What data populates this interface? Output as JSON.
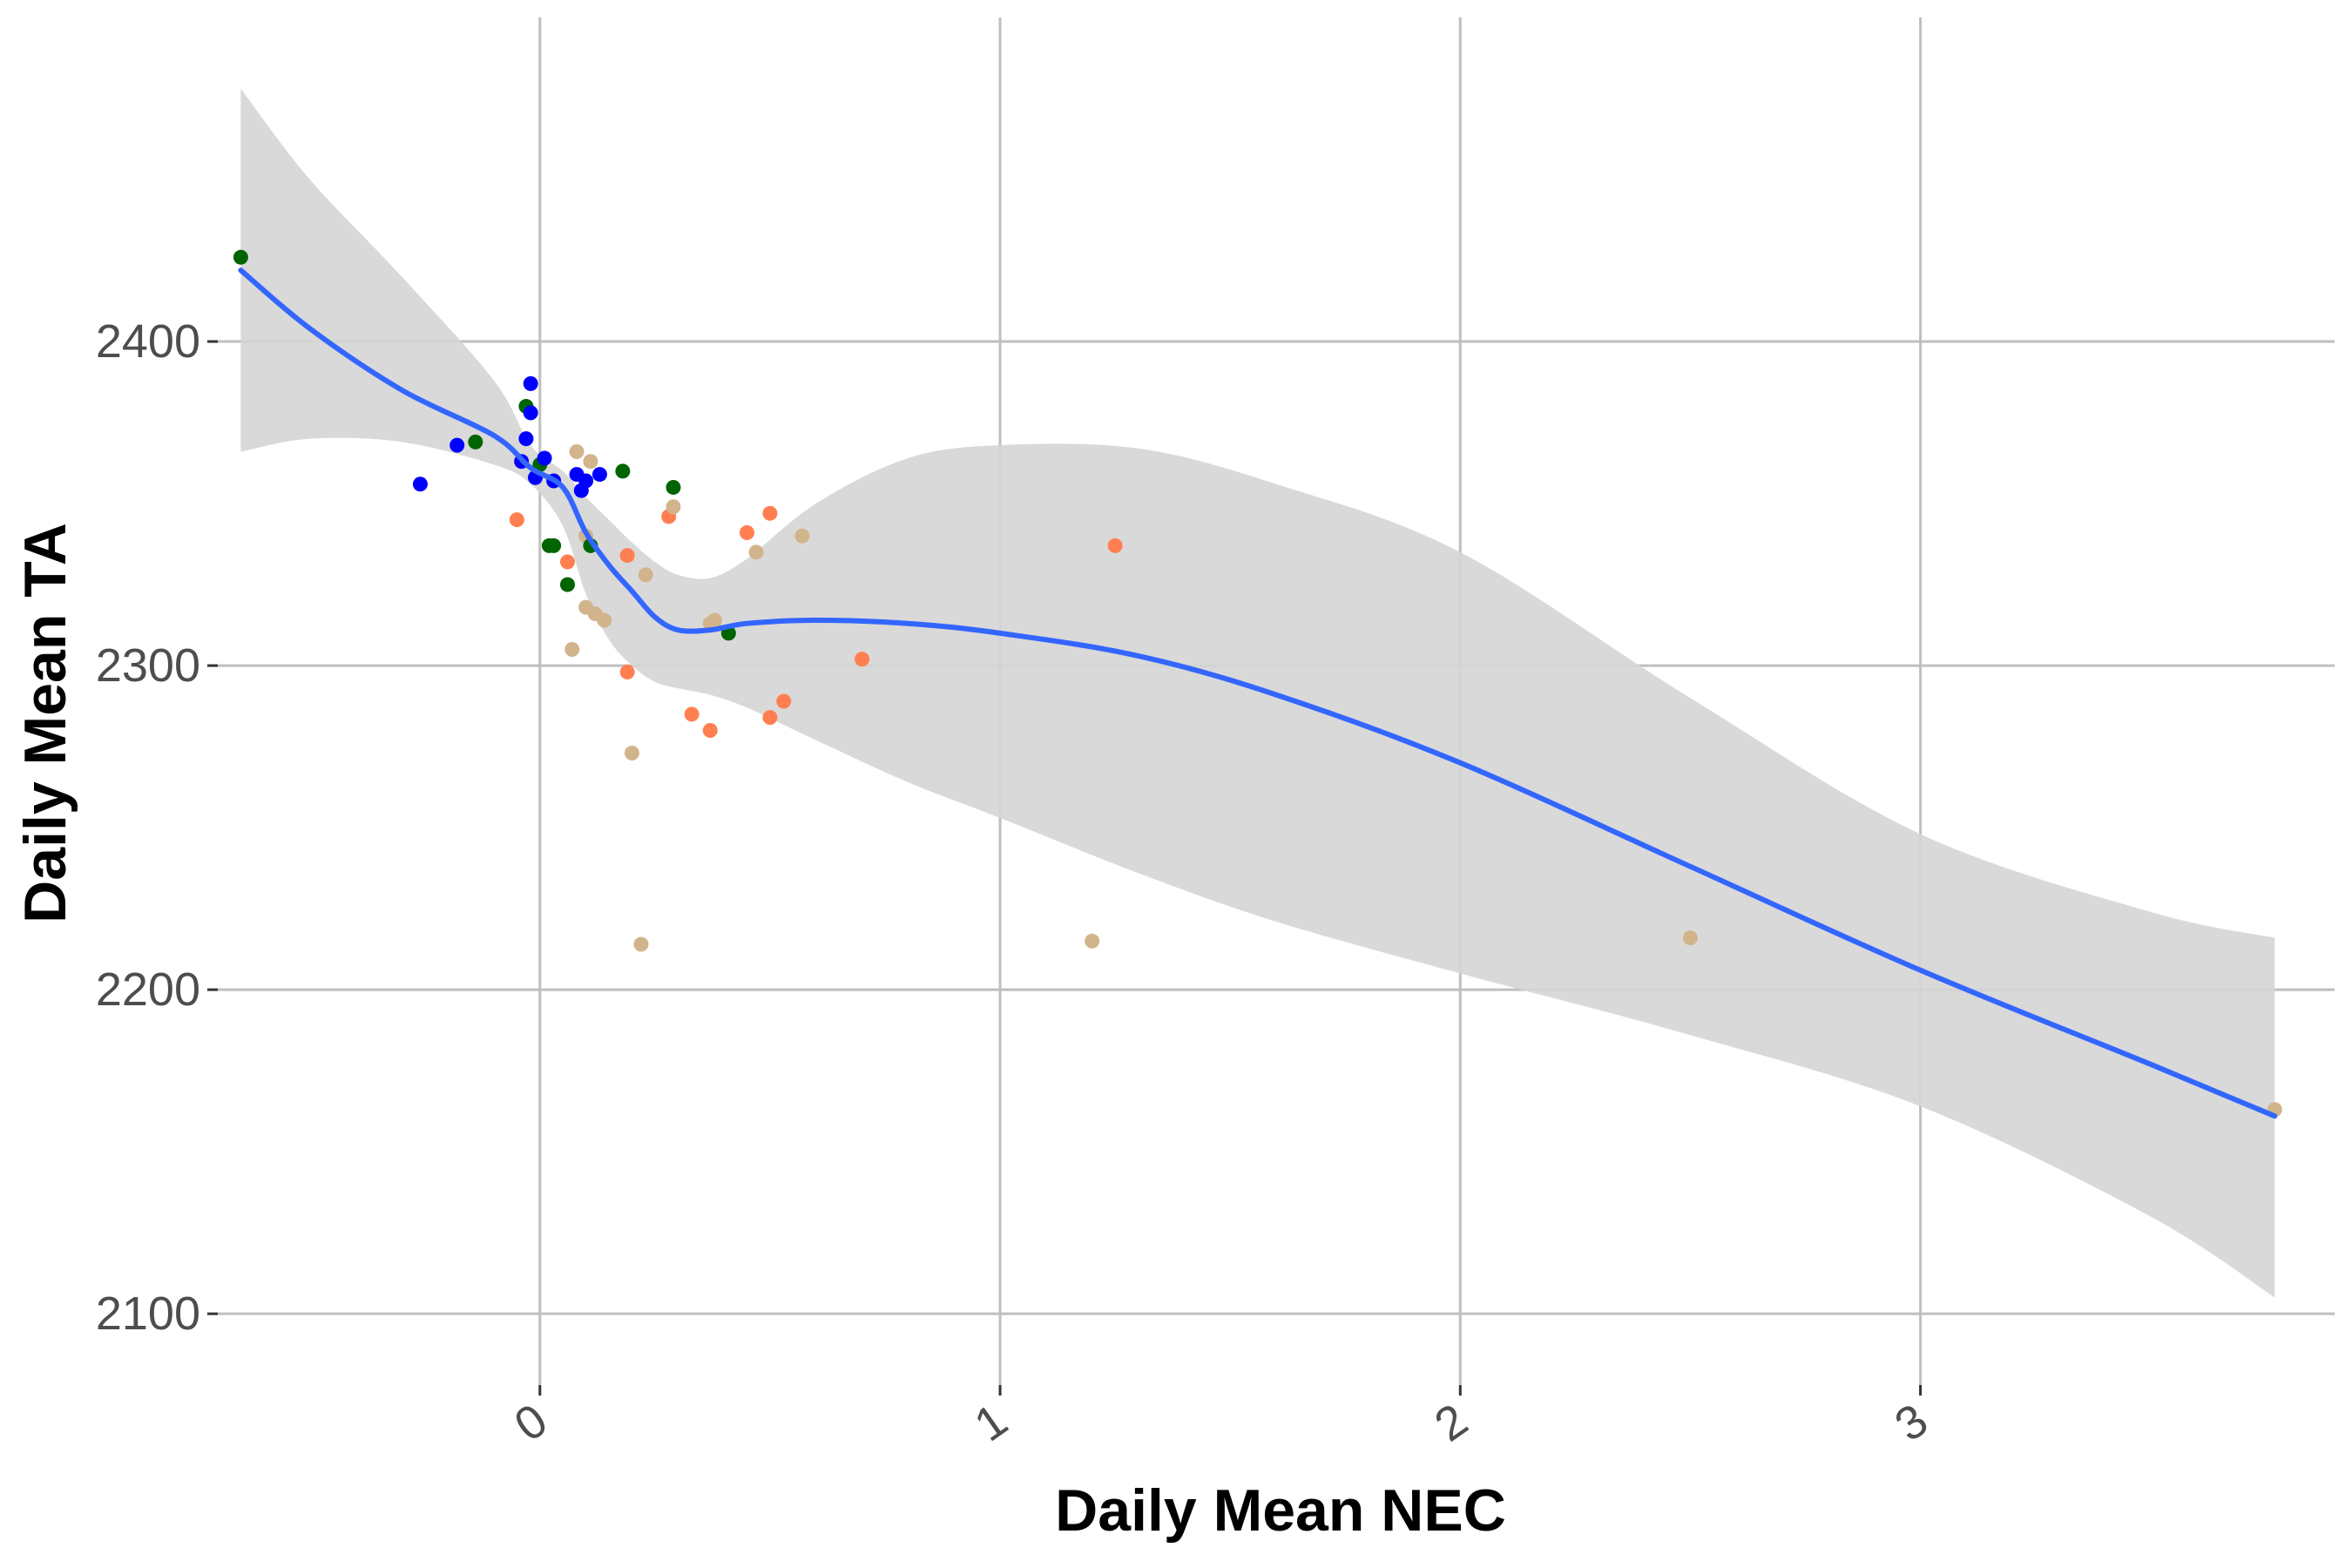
{
  "colors": {
    "grid": "#bfbfbf",
    "band": "#d5d5d5",
    "smooth_line": "#3366ff",
    "blue": "#0000ff",
    "green": "#006400",
    "coral": "#ff7f50",
    "tan": "#d2b48c"
  },
  "chart_data": {
    "type": "scatter",
    "title": "",
    "xlabel": "Daily Mean NEC",
    "ylabel": "Daily Mean TA",
    "xlim": [
      -0.7,
      3.9
    ],
    "ylim": [
      2078,
      2500
    ],
    "x_ticks": [
      0,
      1,
      2,
      3
    ],
    "y_ticks": [
      2100,
      2200,
      2300,
      2400
    ],
    "x_tick_labels": [
      "0",
      "1",
      "2",
      "3"
    ],
    "y_tick_labels": [
      "2100",
      "2200",
      "2300",
      "2400"
    ],
    "grid": true,
    "legend": "none",
    "points": [
      {
        "x": -0.65,
        "y": 2426,
        "color": "green"
      },
      {
        "x": -0.26,
        "y": 2356,
        "color": "blue"
      },
      {
        "x": -0.18,
        "y": 2368,
        "color": "blue"
      },
      {
        "x": -0.14,
        "y": 2369,
        "color": "green"
      },
      {
        "x": -0.05,
        "y": 2345,
        "color": "coral"
      },
      {
        "x": -0.03,
        "y": 2380,
        "color": "green"
      },
      {
        "x": -0.02,
        "y": 2387,
        "color": "blue"
      },
      {
        "x": -0.02,
        "y": 2378,
        "color": "blue"
      },
      {
        "x": -0.03,
        "y": 2370,
        "color": "blue"
      },
      {
        "x": -0.04,
        "y": 2363,
        "color": "blue"
      },
      {
        "x": -0.01,
        "y": 2358,
        "color": "blue"
      },
      {
        "x": 0.0,
        "y": 2362,
        "color": "green"
      },
      {
        "x": 0.01,
        "y": 2364,
        "color": "blue"
      },
      {
        "x": 0.03,
        "y": 2357,
        "color": "blue"
      },
      {
        "x": 0.02,
        "y": 2337,
        "color": "green"
      },
      {
        "x": 0.03,
        "y": 2337,
        "color": "green"
      },
      {
        "x": 0.06,
        "y": 2332,
        "color": "coral"
      },
      {
        "x": 0.06,
        "y": 2325,
        "color": "green"
      },
      {
        "x": 0.07,
        "y": 2305,
        "color": "tan"
      },
      {
        "x": 0.08,
        "y": 2366,
        "color": "tan"
      },
      {
        "x": 0.08,
        "y": 2359,
        "color": "blue"
      },
      {
        "x": 0.09,
        "y": 2354,
        "color": "blue"
      },
      {
        "x": 0.1,
        "y": 2357,
        "color": "blue"
      },
      {
        "x": 0.1,
        "y": 2340,
        "color": "tan"
      },
      {
        "x": 0.1,
        "y": 2318,
        "color": "tan"
      },
      {
        "x": 0.11,
        "y": 2363,
        "color": "tan"
      },
      {
        "x": 0.11,
        "y": 2337,
        "color": "green"
      },
      {
        "x": 0.12,
        "y": 2316,
        "color": "tan"
      },
      {
        "x": 0.13,
        "y": 2359,
        "color": "blue"
      },
      {
        "x": 0.14,
        "y": 2314,
        "color": "tan"
      },
      {
        "x": 0.18,
        "y": 2360,
        "color": "green"
      },
      {
        "x": 0.19,
        "y": 2334,
        "color": "coral"
      },
      {
        "x": 0.19,
        "y": 2298,
        "color": "coral"
      },
      {
        "x": 0.2,
        "y": 2273,
        "color": "tan"
      },
      {
        "x": 0.22,
        "y": 2214,
        "color": "tan"
      },
      {
        "x": 0.23,
        "y": 2328,
        "color": "tan"
      },
      {
        "x": 0.28,
        "y": 2346,
        "color": "coral"
      },
      {
        "x": 0.29,
        "y": 2349,
        "color": "tan"
      },
      {
        "x": 0.29,
        "y": 2355,
        "color": "green"
      },
      {
        "x": 0.33,
        "y": 2285,
        "color": "coral"
      },
      {
        "x": 0.37,
        "y": 2313,
        "color": "tan"
      },
      {
        "x": 0.37,
        "y": 2280,
        "color": "coral"
      },
      {
        "x": 0.38,
        "y": 2314,
        "color": "tan"
      },
      {
        "x": 0.41,
        "y": 2310,
        "color": "green"
      },
      {
        "x": 0.45,
        "y": 2341,
        "color": "coral"
      },
      {
        "x": 0.47,
        "y": 2335,
        "color": "tan"
      },
      {
        "x": 0.5,
        "y": 2284,
        "color": "coral"
      },
      {
        "x": 0.5,
        "y": 2347,
        "color": "coral"
      },
      {
        "x": 0.53,
        "y": 2289,
        "color": "coral"
      },
      {
        "x": 0.57,
        "y": 2340,
        "color": "tan"
      },
      {
        "x": 0.7,
        "y": 2302,
        "color": "coral"
      },
      {
        "x": 1.2,
        "y": 2215,
        "color": "tan"
      },
      {
        "x": 1.25,
        "y": 2337,
        "color": "coral"
      },
      {
        "x": 2.5,
        "y": 2216,
        "color": "tan"
      },
      {
        "x": 3.77,
        "y": 2163,
        "color": "tan"
      }
    ],
    "smooth": {
      "x": [
        -0.65,
        -0.5,
        -0.3,
        -0.1,
        -0.02,
        0.05,
        0.1,
        0.15,
        0.2,
        0.25,
        0.3,
        0.37,
        0.45,
        0.6,
        0.8,
        1.0,
        1.3,
        1.6,
        2.0,
        2.5,
        3.0,
        3.5,
        3.77
      ],
      "y": [
        2422,
        2404,
        2385,
        2371,
        2361,
        2355,
        2341,
        2331,
        2323,
        2315,
        2311,
        2311,
        2313,
        2314,
        2313,
        2310,
        2303,
        2291,
        2270,
        2238,
        2206,
        2177,
        2161
      ],
      "low": [
        2366,
        2370,
        2369,
        2362,
        2356,
        2343,
        2322,
        2308,
        2300,
        2295,
        2293,
        2291,
        2287,
        2277,
        2264,
        2253,
        2236,
        2221,
        2205,
        2186,
        2164,
        2130,
        2105
      ],
      "high": [
        2478,
        2450,
        2420,
        2388,
        2368,
        2360,
        2352,
        2345,
        2338,
        2332,
        2328,
        2327,
        2333,
        2350,
        2364,
        2368,
        2367,
        2356,
        2335,
        2290,
        2248,
        2224,
        2216
      ]
    }
  }
}
